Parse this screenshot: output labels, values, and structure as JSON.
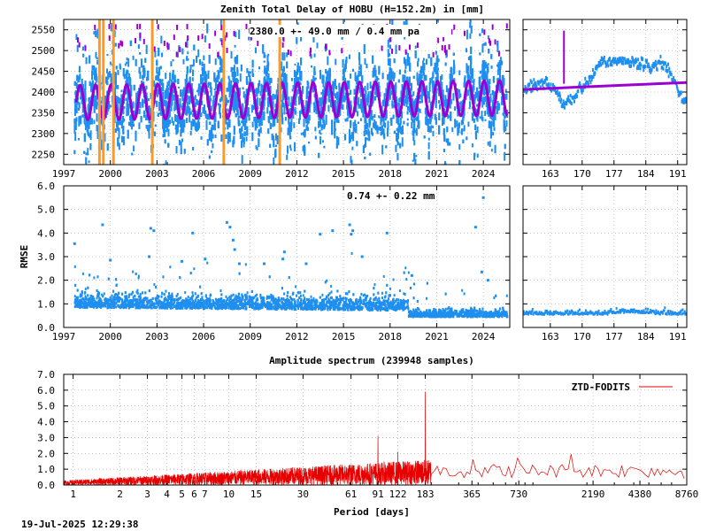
{
  "colors": {
    "blue": "#1f8fef",
    "purple": "#9b00d3",
    "orange": "#ff9a1f",
    "red": "#e60000"
  },
  "ztd_panel": {
    "title": "Zenith Total Delay of HOBU (H=152.2m) in [mm]",
    "annotation": "2380.0 +-  49.0 mm /  0.4 mm pa"
  },
  "rmse_panel": {
    "ylabel": "RMSE",
    "annotation": "0.74 +-  0.22 mm"
  },
  "spectrum_panel": {
    "title": "Amplitude spectrum (239948 samples)",
    "xlabel": "Period [days]",
    "legend": "ZTD-FODITS"
  },
  "footer": {
    "timestamp": "19-Jul-2025 12:29:38"
  },
  "chart_data": [
    {
      "id": "ztd-main",
      "type": "scatter",
      "title": "Zenith Total Delay of HOBU (H=152.2m) in [mm]",
      "xlim": [
        1997.0,
        2025.7
      ],
      "ylim": [
        2225,
        2575
      ],
      "x_ticks": [
        "1997",
        "2000",
        "2003",
        "2006",
        "2009",
        "2012",
        "2015",
        "2018",
        "2021",
        "2024"
      ],
      "y_ticks": [
        "2250",
        "2300",
        "2350",
        "2400",
        "2450",
        "2500",
        "2550"
      ],
      "mean": 2380.0,
      "annual_amplitude": 42,
      "trend_mm_per_year": 0.4,
      "orange_breaks": [
        1999.3,
        1999.55,
        2000.2,
        2002.7,
        2007.3,
        2010.9
      ],
      "series": [
        {
          "name": "observations",
          "color": "#1f8fef"
        },
        {
          "name": "model",
          "color": "#9b00d3"
        }
      ]
    },
    {
      "id": "ztd-zoom",
      "type": "scatter",
      "xlim": [
        157,
        193
      ],
      "ylim": [
        2225,
        2575
      ],
      "x_ticks": [
        "163",
        "170",
        "177",
        "184",
        "191"
      ],
      "series": [
        {
          "name": "observations",
          "color": "#1f8fef"
        },
        {
          "name": "model",
          "color": "#9b00d3"
        }
      ],
      "model_line": {
        "x": [
          157,
          193
        ],
        "y": [
          2406,
          2423
        ]
      },
      "spike": {
        "x": 166.0,
        "y": [
          2420,
          2548
        ]
      }
    },
    {
      "id": "rmse-main",
      "type": "scatter",
      "xlim": [
        1997.0,
        2025.7
      ],
      "ylim": [
        0,
        6
      ],
      "x_ticks": [
        "1997",
        "2000",
        "2003",
        "2006",
        "2009",
        "2012",
        "2015",
        "2018",
        "2021",
        "2024"
      ],
      "y_ticks": [
        "0.0",
        "1.0",
        "2.0",
        "3.0",
        "4.0",
        "5.0",
        "6.0"
      ],
      "ylabel": "RMSE",
      "mean": 0.74,
      "std": 0.22,
      "outliers": [
        [
          1997.7,
          3.55
        ],
        [
          1999.5,
          4.35
        ],
        [
          2002.6,
          4.2
        ],
        [
          2002.8,
          4.1
        ],
        [
          2005.3,
          4.0
        ],
        [
          2007.5,
          4.45
        ],
        [
          2007.7,
          4.25
        ],
        [
          2011.2,
          3.2
        ],
        [
          2013.5,
          3.95
        ],
        [
          2014.3,
          4.1
        ],
        [
          2015.4,
          4.35
        ],
        [
          2015.5,
          3.95
        ],
        [
          2015.6,
          4.1
        ],
        [
          2016.2,
          3.0
        ],
        [
          2017.8,
          4.0
        ],
        [
          2023.5,
          4.25
        ],
        [
          2024.0,
          5.5
        ],
        [
          2000.0,
          2.85
        ],
        [
          2002.5,
          3.0
        ],
        [
          2004.6,
          2.8
        ],
        [
          2006.1,
          2.9
        ],
        [
          2007.9,
          3.7
        ],
        [
          2008.0,
          3.3
        ],
        [
          2008.3,
          2.7
        ],
        [
          2009.9,
          2.7
        ],
        [
          2011.1,
          2.9
        ],
        [
          2012.6,
          2.7
        ],
        [
          2019.4,
          2.2
        ],
        [
          2023.9,
          2.35
        ],
        [
          2024.3,
          2.0
        ]
      ],
      "series": [
        {
          "name": "rmse",
          "color": "#1f8fef"
        }
      ]
    },
    {
      "id": "rmse-zoom",
      "type": "scatter",
      "xlim": [
        157,
        193
      ],
      "ylim": [
        0,
        6
      ],
      "x_ticks": [
        "163",
        "170",
        "177",
        "184",
        "191"
      ],
      "series": [
        {
          "name": "rmse",
          "color": "#1f8fef"
        }
      ]
    },
    {
      "id": "spectrum",
      "type": "line",
      "title": "Amplitude spectrum (239948 samples)",
      "xlabel": "Period [days]",
      "x_scale": "log",
      "xlim": [
        0.87,
        8760
      ],
      "ylim": [
        0,
        7
      ],
      "y_ticks": [
        "0.0",
        "1.0",
        "2.0",
        "3.0",
        "4.0",
        "5.0",
        "6.0",
        "7.0"
      ],
      "x_ticks": [
        {
          "label": "1",
          "value": 1
        },
        {
          "label": "2",
          "value": 2
        },
        {
          "label": "3",
          "value": 3
        },
        {
          "label": "4",
          "value": 4
        },
        {
          "label": "5",
          "value": 5
        },
        {
          "label": "6",
          "value": 6
        },
        {
          "label": "7",
          "value": 7
        },
        {
          "label": "10",
          "value": 10
        },
        {
          "label": "15",
          "value": 15
        },
        {
          "label": "30",
          "value": 30
        },
        {
          "label": "61",
          "value": 61
        },
        {
          "label": "91",
          "value": 91
        },
        {
          "label": "122",
          "value": 122
        },
        {
          "label": "183",
          "value": 183
        },
        {
          "label": "365",
          "value": 365
        },
        {
          "label": "730",
          "value": 730
        },
        {
          "label": "2190",
          "value": 2190
        },
        {
          "label": "4380",
          "value": 4380
        },
        {
          "label": "8760",
          "value": 8760
        }
      ],
      "peaks": [
        {
          "x": 183,
          "y": 5.9
        },
        {
          "x": 122,
          "y": 2.1
        },
        {
          "x": 91,
          "y": 3.1
        },
        {
          "x": 365,
          "y": 1.6
        },
        {
          "x": 730,
          "y": 1.7
        },
        {
          "x": 1600,
          "y": 1.95
        },
        {
          "x": 4380,
          "y": 0.95
        },
        {
          "x": 8760,
          "y": 0.4
        }
      ],
      "series": [
        {
          "name": "ZTD-FODITS",
          "color": "#e60000"
        }
      ]
    }
  ]
}
